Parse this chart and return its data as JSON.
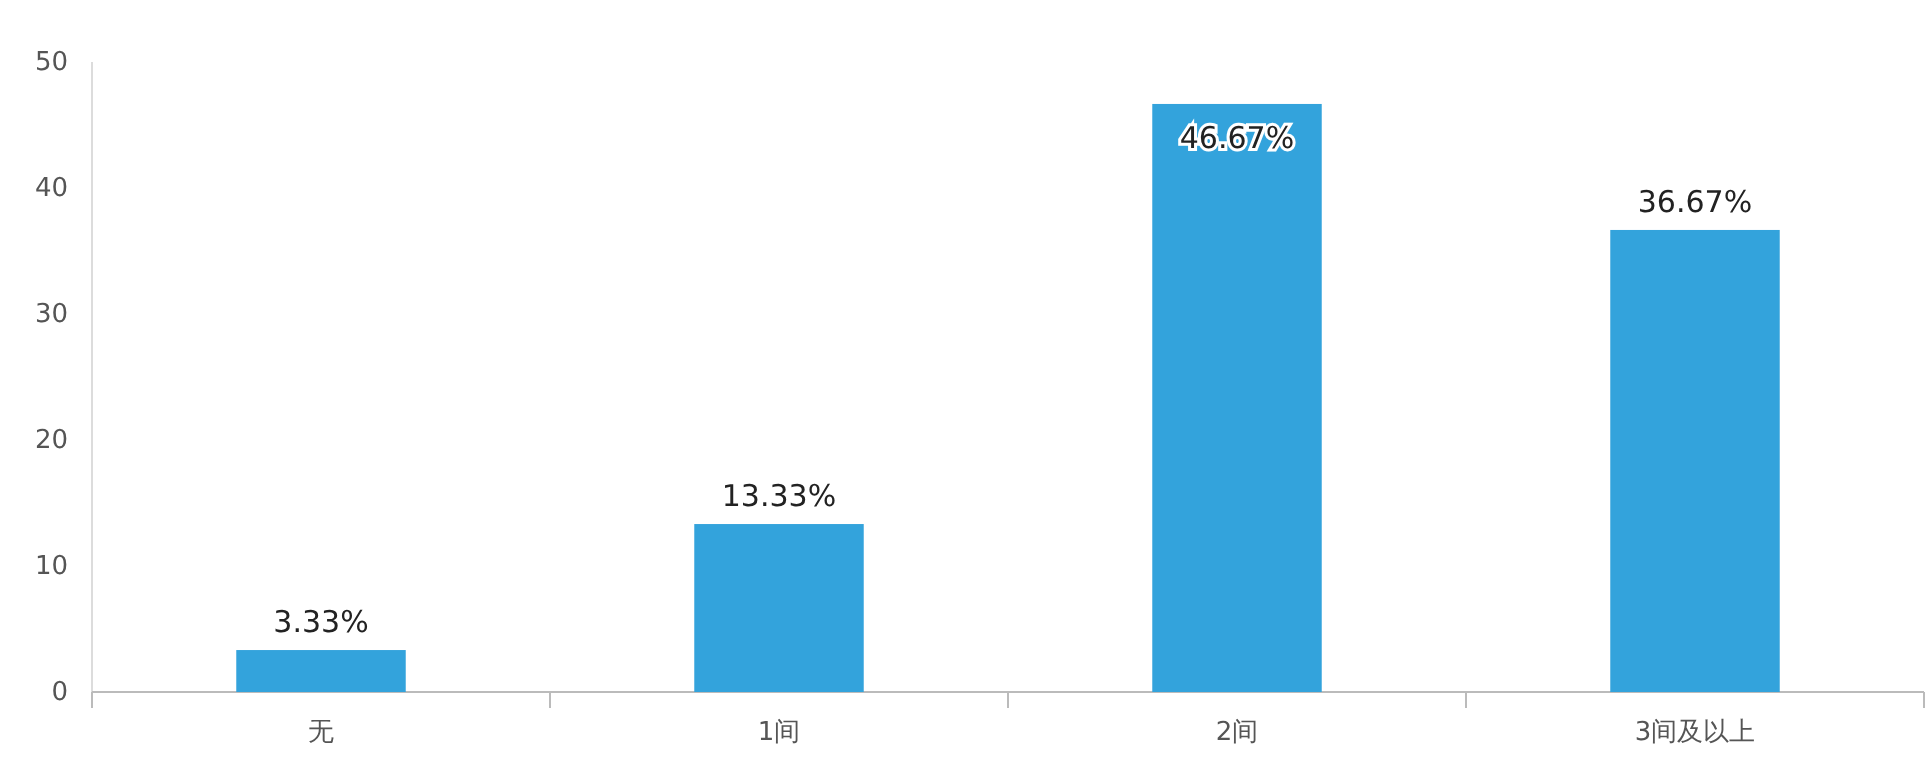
{
  "chart_data": {
    "type": "bar",
    "categories": [
      "无",
      "1间",
      "2间",
      "3间及以上"
    ],
    "values": [
      3.33,
      13.33,
      46.67,
      36.67
    ],
    "value_labels": [
      "3.33%",
      "13.33%",
      "46.67%",
      "36.67%"
    ],
    "color": "#33a3dc",
    "ylim": [
      0,
      50
    ],
    "yticks": [
      0,
      10,
      20,
      30,
      40,
      50
    ],
    "grid": false
  }
}
